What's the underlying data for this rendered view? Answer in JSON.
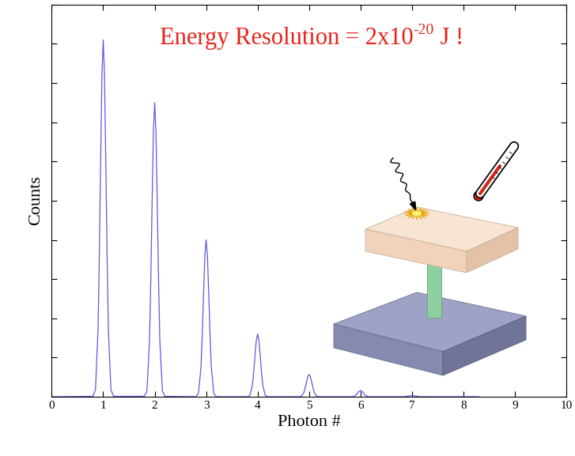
{
  "chart_data": {
    "type": "line",
    "xlabel": "Photon #",
    "ylabel": "Counts",
    "annotation": {
      "text": "Energy Resolution = 2x10",
      "superscript": "-20",
      "suffix": " J !"
    },
    "x": [
      0,
      0.8,
      0.85,
      0.9,
      0.925,
      0.95,
      0.975,
      1,
      1.025,
      1.05,
      1.075,
      1.1,
      1.15,
      1.2,
      1.8,
      1.85,
      1.9,
      1.925,
      1.95,
      1.975,
      2,
      2.025,
      2.05,
      2.075,
      2.1,
      2.15,
      2.2,
      2.8,
      2.85,
      2.9,
      2.925,
      2.95,
      2.975,
      3,
      3.025,
      3.05,
      3.075,
      3.1,
      3.15,
      3.2,
      3.8,
      3.85,
      3.9,
      3.925,
      3.95,
      3.975,
      4,
      4.025,
      4.05,
      4.075,
      4.1,
      4.15,
      4.2,
      4.8,
      4.85,
      4.9,
      4.925,
      4.95,
      4.975,
      5,
      5.025,
      5.05,
      5.075,
      5.1,
      5.15,
      5.2,
      5.8,
      5.85,
      5.9,
      5.925,
      5.95,
      5.975,
      6,
      6.025,
      6.05,
      6.075,
      6.1,
      6.15,
      6.2,
      6.8,
      6.85,
      6.9,
      6.925,
      6.95,
      6.975,
      7,
      7.025,
      7.05,
      7.075,
      7.1,
      7.15,
      7.2,
      8.3
    ],
    "values": [
      0,
      0.001,
      0.018,
      0.173,
      0.364,
      0.601,
      0.819,
      0.91,
      0.819,
      0.601,
      0.364,
      0.173,
      0.018,
      0.001,
      0.001,
      0.015,
      0.143,
      0.3,
      0.495,
      0.675,
      0.75,
      0.675,
      0.495,
      0.3,
      0.143,
      0.015,
      0.001,
      0,
      0.008,
      0.076,
      0.16,
      0.264,
      0.36,
      0.4,
      0.36,
      0.264,
      0.16,
      0.076,
      0.008,
      0,
      0,
      0.003,
      0.03,
      0.064,
      0.106,
      0.144,
      0.16,
      0.144,
      0.106,
      0.064,
      0.03,
      0.003,
      0,
      0,
      0.001,
      0.011,
      0.023,
      0.038,
      0.051,
      0.057,
      0.051,
      0.038,
      0.023,
      0.011,
      0.001,
      0,
      0,
      0,
      0.003,
      0.006,
      0.011,
      0.014,
      0.016,
      0.014,
      0.011,
      0.006,
      0.003,
      0,
      0,
      0,
      0,
      0.001,
      0.001,
      0.002,
      0.003,
      0.003,
      0.003,
      0.002,
      0.001,
      0.001,
      0,
      0,
      0
    ],
    "color": "#5a5ae0",
    "xlim": [
      0,
      10
    ],
    "xticks": [
      0,
      1,
      2,
      3,
      4,
      5,
      6,
      7,
      8,
      9,
      10
    ],
    "ylim": [
      0,
      1
    ],
    "yticks": [
      0,
      0.1,
      0.2,
      0.3,
      0.4,
      0.5,
      0.6,
      0.7,
      0.8,
      0.9,
      1
    ],
    "tick_labels": "x",
    "grid": false
  }
}
